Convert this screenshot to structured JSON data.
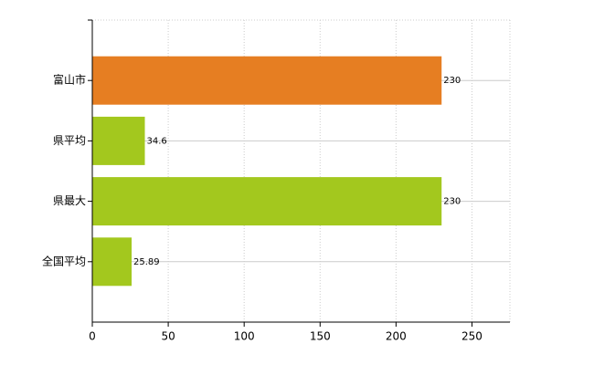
{
  "chart_data": {
    "type": "barh",
    "categories": [
      "富山市",
      "県平均",
      "県最大",
      "全国平均"
    ],
    "values": [
      230,
      34.6,
      230,
      25.89
    ],
    "colors": [
      "#e67e22",
      "#a3c81e",
      "#a3c81e",
      "#a3c81e"
    ],
    "xlim": [
      0,
      275
    ],
    "xticks": [
      0,
      50,
      100,
      150,
      200,
      250
    ],
    "grid": true
  }
}
